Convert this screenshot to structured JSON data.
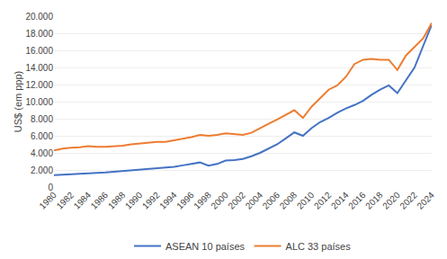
{
  "chart_data": {
    "type": "line",
    "ylabel": "US$ (em ppp)",
    "x": [
      1980,
      1981,
      1982,
      1983,
      1984,
      1985,
      1986,
      1987,
      1988,
      1989,
      1990,
      1991,
      1992,
      1993,
      1994,
      1995,
      1996,
      1997,
      1998,
      1999,
      2000,
      2001,
      2002,
      2003,
      2004,
      2005,
      2006,
      2007,
      2008,
      2009,
      2010,
      2011,
      2012,
      2013,
      2014,
      2015,
      2016,
      2017,
      2018,
      2019,
      2020,
      2021,
      2022,
      2023,
      2024
    ],
    "series": [
      {
        "name": "ASEAN 10 países",
        "color": "#4472C4",
        "values": [
          1400,
          1470,
          1510,
          1550,
          1610,
          1670,
          1710,
          1790,
          1890,
          1970,
          2040,
          2090,
          2150,
          2250,
          2360,
          2540,
          2700,
          2880,
          2500,
          2700,
          3100,
          3150,
          3300,
          3600,
          4000,
          4500,
          5000,
          5700,
          6400,
          6000,
          6900,
          7600,
          8100,
          8700,
          9200,
          9600,
          10100,
          10800,
          11400,
          11900,
          11000,
          12500,
          14000,
          16500,
          19000
        ]
      },
      {
        "name": "ALC 33 países",
        "color": "#ED7D31",
        "values": [
          4300,
          4500,
          4600,
          4650,
          4800,
          4700,
          4700,
          4750,
          4850,
          5000,
          5100,
          5200,
          5300,
          5300,
          5450,
          5650,
          5850,
          6100,
          6000,
          6100,
          6300,
          6200,
          6100,
          6350,
          6900,
          7400,
          7900,
          8450,
          9000,
          8100,
          9400,
          10400,
          11400,
          11900,
          12900,
          14400,
          14900,
          15000,
          14900,
          14900,
          13700,
          15400,
          16400,
          17400,
          19200
        ]
      }
    ],
    "xlim": [
      1980,
      2024
    ],
    "xticks": [
      1980,
      1982,
      1984,
      1986,
      1988,
      1990,
      1992,
      1994,
      1996,
      1998,
      2000,
      2002,
      2004,
      2006,
      2008,
      2010,
      2012,
      2014,
      2016,
      2018,
      2020,
      2022,
      2024
    ],
    "ylim": [
      0,
      20000
    ],
    "yticks": [
      0,
      {
        "value": 2000,
        "label": "2.000"
      },
      {
        "value": 4000,
        "label": "4.000"
      },
      {
        "value": 6000,
        "label": "6.000"
      },
      {
        "value": 8000,
        "label": "8.000"
      },
      {
        "value": 10000,
        "label": "10.000"
      },
      {
        "value": 12000,
        "label": "12.000"
      },
      {
        "value": 14000,
        "label": "14.000"
      },
      {
        "value": 16000,
        "label": "16.000"
      },
      {
        "value": 18000,
        "label": "18.000"
      },
      {
        "value": 20000,
        "label": "20.000"
      }
    ],
    "grid": "y",
    "legend": "bottom"
  }
}
